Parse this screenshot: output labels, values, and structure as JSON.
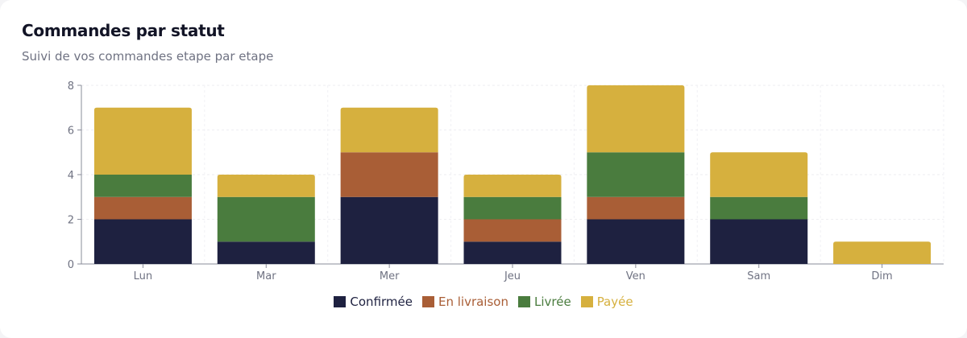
{
  "card": {
    "title": "Commandes par statut",
    "subtitle": "Suivi de vos commandes etape par etape"
  },
  "chart_data": {
    "type": "bar",
    "stacked": true,
    "categories": [
      "Lun",
      "Mar",
      "Mer",
      "Jeu",
      "Ven",
      "Sam",
      "Dim"
    ],
    "series": [
      {
        "name": "Confirmée",
        "color": "#1e2140",
        "values": [
          2,
          1,
          3,
          1,
          2,
          2,
          0
        ]
      },
      {
        "name": "En livraison",
        "color": "#a95e36",
        "values": [
          1,
          0,
          2,
          1,
          1,
          0,
          0
        ]
      },
      {
        "name": "Livrée",
        "color": "#4a7c3e",
        "values": [
          1,
          2,
          0,
          1,
          2,
          1,
          0
        ]
      },
      {
        "name": "Payée",
        "color": "#d6b03e",
        "values": [
          3,
          1,
          2,
          1,
          3,
          2,
          1
        ]
      }
    ],
    "ylim": [
      0,
      8
    ],
    "yticks": [
      0,
      2,
      4,
      6,
      8
    ],
    "grid": true,
    "legend": "bottom"
  }
}
